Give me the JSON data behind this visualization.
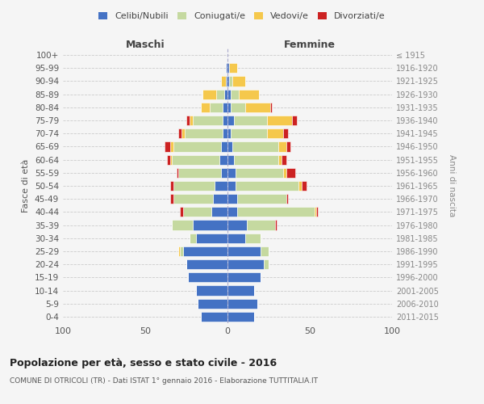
{
  "age_groups": [
    "100+",
    "95-99",
    "90-94",
    "85-89",
    "80-84",
    "75-79",
    "70-74",
    "65-69",
    "60-64",
    "55-59",
    "50-54",
    "45-49",
    "40-44",
    "35-39",
    "30-34",
    "25-29",
    "20-24",
    "15-19",
    "10-14",
    "5-9",
    "0-4"
  ],
  "birth_years": [
    "≤ 1915",
    "1916-1920",
    "1921-1925",
    "1926-1930",
    "1931-1935",
    "1936-1940",
    "1941-1945",
    "1946-1950",
    "1951-1955",
    "1956-1960",
    "1961-1965",
    "1966-1970",
    "1971-1975",
    "1976-1980",
    "1981-1985",
    "1986-1990",
    "1991-1995",
    "1996-2000",
    "2001-2005",
    "2006-2010",
    "2011-2015"
  ],
  "maschi": {
    "celibi": [
      0,
      1,
      1,
      2,
      3,
      3,
      3,
      4,
      5,
      4,
      8,
      9,
      10,
      21,
      19,
      27,
      25,
      24,
      19,
      18,
      16
    ],
    "coniugati": [
      0,
      0,
      0,
      5,
      8,
      18,
      23,
      29,
      29,
      26,
      25,
      24,
      17,
      13,
      4,
      2,
      0,
      0,
      0,
      0,
      0
    ],
    "vedovi": [
      0,
      0,
      3,
      8,
      5,
      2,
      2,
      2,
      1,
      0,
      0,
      0,
      0,
      0,
      0,
      1,
      0,
      0,
      0,
      0,
      0
    ],
    "divorziati": [
      0,
      0,
      0,
      0,
      0,
      2,
      2,
      3,
      2,
      1,
      2,
      2,
      2,
      0,
      0,
      0,
      0,
      0,
      0,
      0,
      0
    ]
  },
  "femmine": {
    "nubili": [
      0,
      1,
      1,
      2,
      2,
      4,
      2,
      3,
      4,
      5,
      5,
      6,
      6,
      12,
      11,
      20,
      22,
      20,
      16,
      18,
      16
    ],
    "coniugate": [
      0,
      0,
      2,
      5,
      9,
      20,
      22,
      28,
      27,
      29,
      38,
      30,
      47,
      17,
      9,
      5,
      3,
      0,
      0,
      0,
      0
    ],
    "vedove": [
      0,
      5,
      8,
      12,
      15,
      15,
      10,
      5,
      2,
      2,
      2,
      0,
      1,
      0,
      0,
      0,
      0,
      0,
      0,
      0,
      0
    ],
    "divorziate": [
      0,
      0,
      0,
      0,
      1,
      3,
      3,
      2,
      3,
      5,
      3,
      1,
      1,
      1,
      0,
      0,
      0,
      0,
      0,
      0,
      0
    ]
  },
  "colors": {
    "celibi": "#4472C4",
    "coniugati": "#c5d9a0",
    "vedovi": "#f5c84c",
    "divorziati": "#cc2222"
  },
  "title": "Popolazione per età, sesso e stato civile - 2016",
  "subtitle": "COMUNE DI OTRICOLI (TR) - Dati ISTAT 1° gennaio 2016 - Elaborazione TUTTITALIA.IT",
  "xlabel_maschi": "Maschi",
  "xlabel_femmine": "Femmine",
  "ylabel_left": "Fasce di età",
  "ylabel_right": "Anni di nascita",
  "xlim": 100,
  "legend_labels": [
    "Celibi/Nubili",
    "Coniugati/e",
    "Vedovi/e",
    "Divorziati/e"
  ],
  "bg_color": "#f5f5f5"
}
